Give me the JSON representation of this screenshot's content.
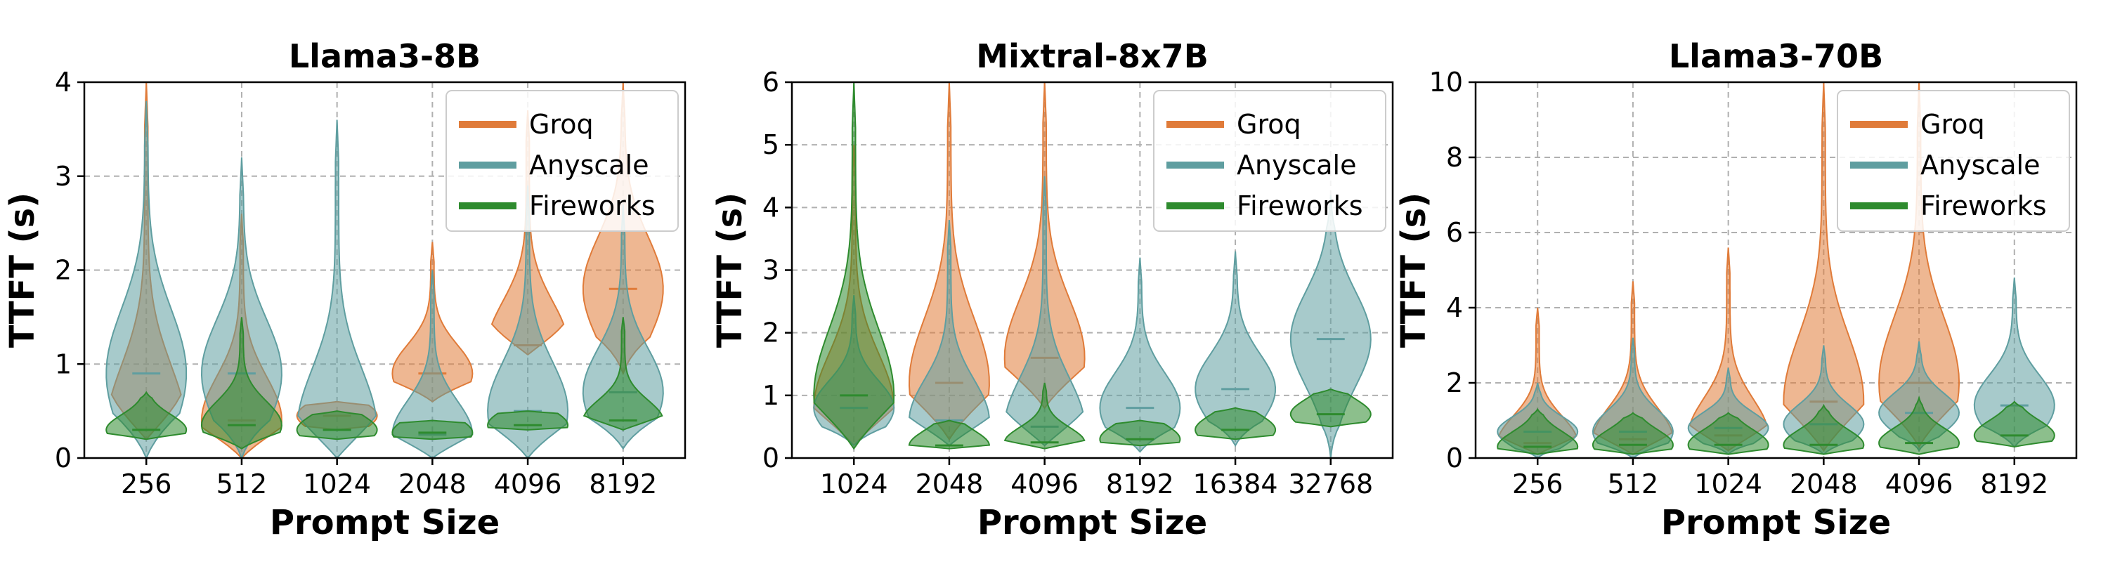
{
  "chart_data": [
    {
      "type": "violin",
      "title": "Llama3-8B",
      "xlabel": "Prompt Size",
      "ylabel": "TTFT (s)",
      "categories": [
        "256",
        "512",
        "1024",
        "2048",
        "4096",
        "8192"
      ],
      "ylim": [
        0,
        4
      ],
      "yticks": [
        0,
        1,
        2,
        3,
        4
      ],
      "grid": true,
      "legend": "top-right",
      "series": [
        {
          "name": "Groq",
          "color": "#e07b39",
          "ranges": [
            [
              0.2,
              4.0
            ],
            [
              0.0,
              2.6
            ],
            [
              0.3,
              0.6
            ],
            [
              0.6,
              2.3
            ],
            [
              1.1,
              3.7
            ],
            [
              0.9,
              4.0
            ]
          ],
          "medians": [
            0.3,
            0.4,
            0.45,
            0.9,
            1.2,
            1.8
          ]
        },
        {
          "name": "Anyscale",
          "color": "#5f9ea0",
          "ranges": [
            [
              0.0,
              3.8
            ],
            [
              0.0,
              3.2
            ],
            [
              0.0,
              3.6
            ],
            [
              0.0,
              2.0
            ],
            [
              0.0,
              2.9
            ],
            [
              0.1,
              2.7
            ]
          ],
          "medians": [
            0.9,
            0.9,
            0.3,
            0.25,
            0.5,
            0.7
          ]
        },
        {
          "name": "Fireworks",
          "color": "#2e8b2e",
          "ranges": [
            [
              0.2,
              0.7
            ],
            [
              0.1,
              1.5
            ],
            [
              0.2,
              0.5
            ],
            [
              0.2,
              0.4
            ],
            [
              0.3,
              0.5
            ],
            [
              0.3,
              1.5
            ]
          ],
          "medians": [
            0.3,
            0.35,
            0.3,
            0.27,
            0.35,
            0.4
          ]
        }
      ]
    },
    {
      "type": "violin",
      "title": "Mixtral-8x7B",
      "xlabel": "Prompt Size",
      "ylabel": "TTFT (s)",
      "categories": [
        "1024",
        "2048",
        "4096",
        "8192",
        "16384",
        "32768"
      ],
      "ylim": [
        0,
        6
      ],
      "yticks": [
        0,
        1,
        2,
        3,
        4,
        5,
        6
      ],
      "grid": true,
      "legend": "top-right",
      "series": [
        {
          "name": "Groq",
          "color": "#e07b39",
          "ranges": [
            [
              0.2,
              5.0
            ],
            [
              0.3,
              6.0
            ],
            [
              0.8,
              6.0
            ],
            null,
            null,
            null
          ],
          "medians": [
            0.8,
            1.2,
            1.6,
            null,
            null,
            null
          ]
        },
        {
          "name": "Anyscale",
          "color": "#5f9ea0",
          "ranges": [
            [
              0.2,
              2.6
            ],
            [
              0.2,
              3.8
            ],
            [
              0.2,
              4.5
            ],
            [
              0.1,
              3.2
            ],
            [
              0.2,
              3.3
            ],
            [
              0.0,
              4.2
            ]
          ],
          "medians": [
            0.8,
            0.6,
            0.5,
            0.8,
            1.1,
            1.9
          ]
        },
        {
          "name": "Fireworks",
          "color": "#2e8b2e",
          "ranges": [
            [
              0.15,
              6.0
            ],
            [
              0.15,
              0.6
            ],
            [
              0.15,
              1.2
            ],
            [
              0.2,
              0.6
            ],
            [
              0.3,
              0.8
            ],
            [
              0.5,
              1.1
            ]
          ],
          "medians": [
            1.0,
            0.2,
            0.25,
            0.3,
            0.45,
            0.7
          ]
        }
      ]
    },
    {
      "type": "violin",
      "title": "Llama3-70B",
      "xlabel": "Prompt Size",
      "ylabel": "TTFT (s)",
      "categories": [
        "256",
        "512",
        "1024",
        "2048",
        "4096",
        "8192"
      ],
      "ylim": [
        0,
        10
      ],
      "yticks": [
        0,
        2,
        4,
        6,
        8,
        10
      ],
      "grid": true,
      "legend": "top-right",
      "series": [
        {
          "name": "Groq",
          "color": "#e07b39",
          "ranges": [
            [
              0.1,
              4.0
            ],
            [
              0.1,
              4.7
            ],
            [
              0.2,
              5.6
            ],
            [
              0.2,
              10.0
            ],
            [
              0.3,
              10.0
            ],
            null
          ],
          "medians": [
            0.4,
            0.5,
            0.6,
            1.5,
            2.0,
            null
          ]
        },
        {
          "name": "Anyscale",
          "color": "#5f9ea0",
          "ranges": [
            [
              0.0,
              2.0
            ],
            [
              0.0,
              3.2
            ],
            [
              0.1,
              2.4
            ],
            [
              0.1,
              3.0
            ],
            [
              0.2,
              3.1
            ],
            [
              0.3,
              4.8
            ]
          ],
          "medians": [
            0.7,
            0.7,
            0.8,
            0.9,
            1.2,
            1.4
          ]
        },
        {
          "name": "Fireworks",
          "color": "#2e8b2e",
          "ranges": [
            [
              0.1,
              1.3
            ],
            [
              0.1,
              1.2
            ],
            [
              0.1,
              1.2
            ],
            [
              0.1,
              1.4
            ],
            [
              0.1,
              1.6
            ],
            [
              0.3,
              1.5
            ]
          ],
          "medians": [
            0.3,
            0.35,
            0.35,
            0.35,
            0.4,
            0.6
          ]
        }
      ]
    }
  ]
}
